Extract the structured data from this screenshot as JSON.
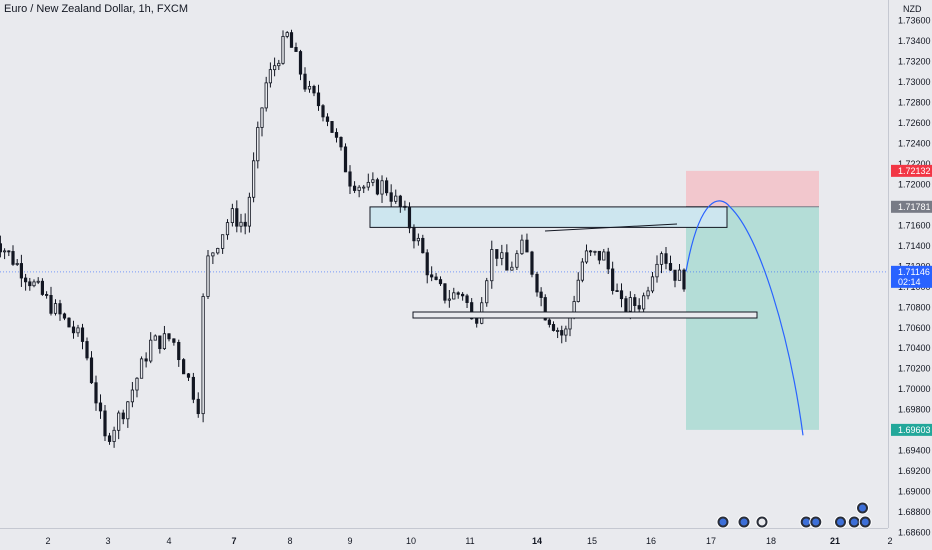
{
  "symbol": "Euro / New Zealand Dollar, 1h, FXCM",
  "currency": "NZD",
  "chart_data": {
    "type": "candlestick",
    "title": "Euro / New Zealand Dollar, 1h, FXCM",
    "ylabel": "NZD",
    "ylim": [
      1.686,
      1.7375
    ],
    "y_ticks": [
      "1.73600",
      "1.73400",
      "1.73200",
      "1.73000",
      "1.72800",
      "1.72600",
      "1.72400",
      "1.72200",
      "1.72000",
      "1.71600",
      "1.71400",
      "1.71200",
      "1.71000",
      "1.70800",
      "1.70600",
      "1.70400",
      "1.70200",
      "1.70000",
      "1.69800",
      "1.69400",
      "1.69200",
      "1.69000",
      "1.68800",
      "1.68600"
    ],
    "x_ticks": [
      {
        "label": "2",
        "bold": false
      },
      {
        "label": "3",
        "bold": false
      },
      {
        "label": "4",
        "bold": false
      },
      {
        "label": "7",
        "bold": true
      },
      {
        "label": "8",
        "bold": false
      },
      {
        "label": "9",
        "bold": false
      },
      {
        "label": "10",
        "bold": false
      },
      {
        "label": "11",
        "bold": false
      },
      {
        "label": "14",
        "bold": true
      },
      {
        "label": "15",
        "bold": false
      },
      {
        "label": "16",
        "bold": false
      },
      {
        "label": "17",
        "bold": false
      },
      {
        "label": "18",
        "bold": false
      },
      {
        "label": "21",
        "bold": true
      },
      {
        "label": "2",
        "bold": false
      }
    ],
    "tick_prices": [
      1.736,
      1.734,
      1.732,
      1.73,
      1.728,
      1.726,
      1.724,
      1.722,
      1.72,
      1.716,
      1.714,
      1.712,
      1.71,
      1.708,
      1.706,
      1.704,
      1.702,
      1.7,
      1.698,
      1.694,
      1.692,
      1.69,
      1.688,
      1.686
    ],
    "price_labels": [
      {
        "text": "1.72132",
        "value": 1.72132,
        "color": "#f23645"
      },
      {
        "text": "1.71781",
        "value": 1.71781,
        "color": "#787b86"
      },
      {
        "text": "1.71146",
        "value": 1.71146,
        "color": "#2962ff",
        "sub": "02:14"
      },
      {
        "text": "1.69603",
        "value": 1.69603,
        "color": "#22a79a"
      }
    ],
    "last_price": 1.71146,
    "position": {
      "type": "short",
      "entry": 1.71781,
      "stop": 1.72132,
      "target": 1.69603,
      "color_stop": "#f2c7cd",
      "color_target": "#b4ddd7"
    },
    "zones": [
      {
        "top": 1.7178,
        "bottom": 1.7158,
        "fill": "#cde6ef"
      },
      {
        "top": 1.70705,
        "bottom": 1.7065,
        "fill": "#e9eaee"
      }
    ],
    "anchors": [
      {
        "d": 1.0,
        "p": 1.7085
      },
      {
        "d": 1.6,
        "p": 1.7045
      },
      {
        "d": 1.95,
        "p": 1.695
      },
      {
        "d": 2.3,
        "p": 1.6985
      },
      {
        "d": 2.7,
        "p": 1.7045
      },
      {
        "d": 3.05,
        "p": 1.705
      },
      {
        "d": 3.45,
        "p": 1.6985
      },
      {
        "d": 3.55,
        "p": 1.712
      },
      {
        "d": 3.95,
        "p": 1.717
      },
      {
        "d": 4.2,
        "p": 1.716
      },
      {
        "d": 4.55,
        "p": 1.7295
      },
      {
        "d": 4.95,
        "p": 1.7345
      },
      {
        "d": 5.3,
        "p": 1.729
      },
      {
        "d": 5.6,
        "p": 1.727
      },
      {
        "d": 6.0,
        "p": 1.7205
      },
      {
        "d": 6.3,
        "p": 1.7195
      },
      {
        "d": 6.55,
        "p": 1.72
      },
      {
        "d": 6.85,
        "p": 1.7175
      },
      {
        "d": 7.15,
        "p": 1.714
      },
      {
        "d": 7.35,
        "p": 1.7105
      },
      {
        "d": 7.6,
        "p": 1.709
      },
      {
        "d": 7.9,
        "p": 1.7095
      },
      {
        "d": 8.05,
        "p": 1.706
      },
      {
        "d": 8.35,
        "p": 1.714
      },
      {
        "d": 8.55,
        "p": 1.7115
      },
      {
        "d": 8.8,
        "p": 1.714
      },
      {
        "d": 9.15,
        "p": 1.7075
      },
      {
        "d": 9.5,
        "p": 1.705
      },
      {
        "d": 9.85,
        "p": 1.713
      },
      {
        "d": 10.2,
        "p": 1.713
      },
      {
        "d": 10.5,
        "p": 1.708
      },
      {
        "d": 10.85,
        "p": 1.7085
      },
      {
        "d": 11.15,
        "p": 1.714
      },
      {
        "d": 11.35,
        "p": 1.7115
      },
      {
        "d": 11.75,
        "p": 1.7098
      },
      {
        "d": 12.1,
        "p": 1.7105
      }
    ],
    "projection": [
      1.7115,
      1.7178,
      1.714,
      1.6955
    ],
    "event_markers": [
      {
        "d": 12.2,
        "kind": "flag"
      },
      {
        "d": 12.55,
        "kind": "flag"
      },
      {
        "d": 12.85,
        "kind": "clock"
      },
      {
        "d": 13.55,
        "kind": "flag"
      },
      {
        "d": 13.7,
        "kind": "flag"
      },
      {
        "d": 14.1,
        "kind": "flag"
      },
      {
        "d": 14.35,
        "kind": "flag"
      },
      {
        "d": 14.55,
        "kind": "flag"
      },
      {
        "d": 14.5,
        "kind": "flag",
        "row": 2
      }
    ]
  }
}
